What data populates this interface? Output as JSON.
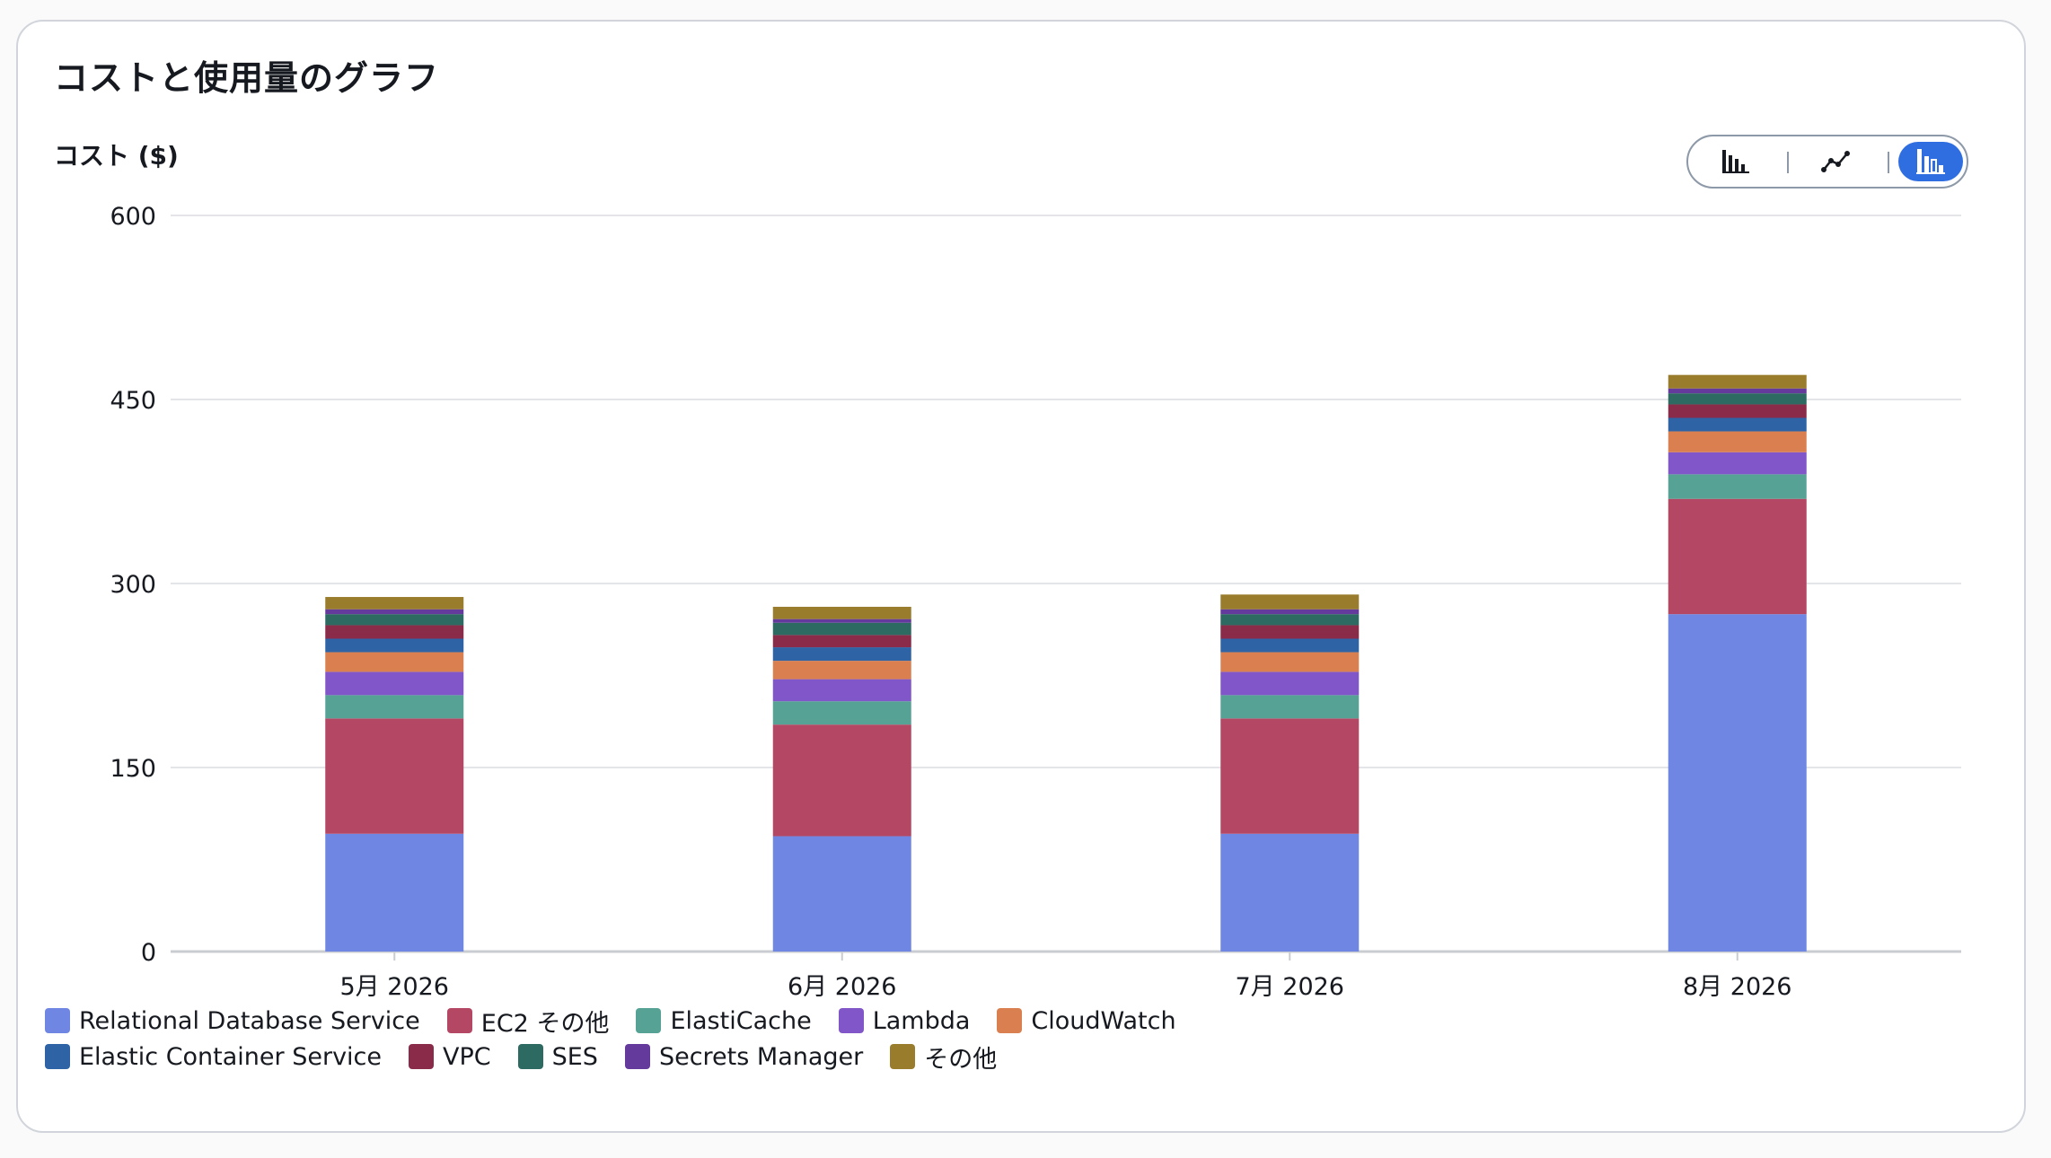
{
  "header": {
    "title": "コストと使用量のグラフ",
    "y_axis_label": "コスト ($)"
  },
  "view_toggle": {
    "options": [
      {
        "name": "bar-chart-icon",
        "active": false
      },
      {
        "name": "line-chart-icon",
        "active": false
      },
      {
        "name": "stacked-bar-chart-icon",
        "active": true
      }
    ]
  },
  "colors": {
    "Relational Database Service": "#6f87e3",
    "EC2 その他": "#b44764",
    "ElastiCache": "#56a395",
    "Lambda": "#8056c8",
    "CloudWatch": "#da8050",
    "Elastic Container Service": "#2e64a6",
    "VPC": "#8b2b4a",
    "SES": "#2c6a62",
    "Secrets Manager": "#643a9c",
    "その他": "#9a7d2c"
  },
  "chart_data": {
    "type": "bar",
    "stacked": true,
    "title": "コストと使用量のグラフ",
    "ylabel": "コスト ($)",
    "ylim": [
      0,
      600
    ],
    "yticks": [
      0,
      150,
      300,
      450,
      600
    ],
    "grid": true,
    "legend_position": "bottom",
    "categories": [
      "5月 2026",
      "6月 2026",
      "7月 2026",
      "8月 2026"
    ],
    "series": [
      {
        "name": "Relational Database Service",
        "values": [
          96,
          94,
          96,
          275
        ]
      },
      {
        "name": "EC2 その他",
        "values": [
          94,
          91,
          94,
          94
        ]
      },
      {
        "name": "ElastiCache",
        "values": [
          19,
          19,
          19,
          20
        ]
      },
      {
        "name": "Lambda",
        "values": [
          19,
          18,
          19,
          18
        ]
      },
      {
        "name": "CloudWatch",
        "values": [
          16,
          15,
          16,
          17
        ]
      },
      {
        "name": "Elastic Container Service",
        "values": [
          11,
          11,
          11,
          11
        ]
      },
      {
        "name": "VPC",
        "values": [
          11,
          10,
          11,
          11
        ]
      },
      {
        "name": "SES",
        "values": [
          9,
          10,
          9,
          9
        ]
      },
      {
        "name": "Secrets Manager",
        "values": [
          4,
          3,
          4,
          4
        ]
      },
      {
        "name": "その他",
        "values": [
          10,
          10,
          12,
          11
        ]
      }
    ]
  }
}
